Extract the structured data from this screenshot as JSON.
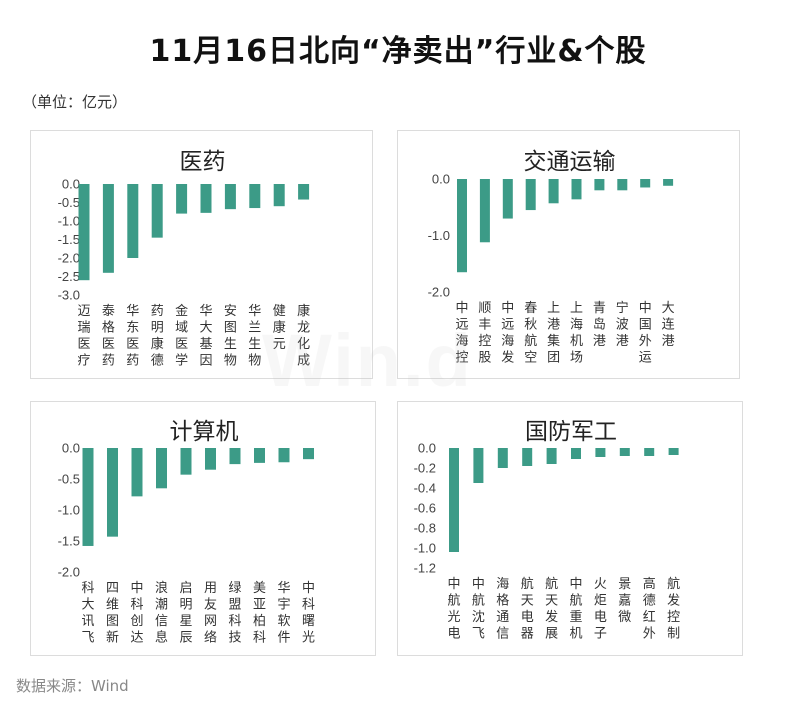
{
  "title": "11月16日北向“净卖出”行业&个股",
  "unit": "（单位：亿元）",
  "source": "数据来源：Wind",
  "watermark": "Win.d",
  "bar_color": "#3c9b87",
  "chart_data": [
    {
      "type": "bar",
      "title": "医药",
      "ylim": [
        -3.0,
        0.0
      ],
      "yticks": [
        "0.0",
        "-0.5",
        "-1.0",
        "-1.5",
        "-2.0",
        "-2.5",
        "-3.0"
      ],
      "categories": [
        "迈瑞医疗",
        "泰格医药",
        "华东医药",
        "药明康德",
        "金域医学",
        "华大基因",
        "安图生物",
        "华兰生物",
        "健康元",
        "康龙化成"
      ],
      "values": [
        -2.6,
        -2.4,
        -2.0,
        -1.45,
        -0.8,
        -0.78,
        -0.68,
        -0.65,
        -0.6,
        -0.42
      ]
    },
    {
      "type": "bar",
      "title": "交通运输",
      "ylim": [
        -2.0,
        0.0
      ],
      "yticks": [
        "0.0",
        "-1.0",
        "-2.0"
      ],
      "categories": [
        "中远海控",
        "顺丰控股",
        "中远海发",
        "春秋航空",
        "上港集团",
        "上海机场",
        "青岛港",
        "宁波港",
        "中国外运",
        "大连港"
      ],
      "values": [
        -1.65,
        -1.12,
        -0.7,
        -0.55,
        -0.43,
        -0.36,
        -0.2,
        -0.2,
        -0.15,
        -0.12
      ]
    },
    {
      "type": "bar",
      "title": "计算机",
      "ylim": [
        -2.0,
        0.0
      ],
      "yticks": [
        "0.0",
        "-0.5",
        "-1.0",
        "-1.5",
        "-2.0"
      ],
      "categories": [
        "科大讯飞",
        "四维图新",
        "中科创达",
        "浪潮信息",
        "启明星辰",
        "用友网络",
        "绿盟科技",
        "美亚柏科",
        "华宇软件",
        "中科曙光"
      ],
      "values": [
        -1.58,
        -1.43,
        -0.78,
        -0.65,
        -0.43,
        -0.35,
        -0.26,
        -0.24,
        -0.23,
        -0.18
      ]
    },
    {
      "type": "bar",
      "title": "国防军工",
      "ylim": [
        -1.2,
        0.0
      ],
      "yticks": [
        "0.0",
        "-0.2",
        "-0.4",
        "-0.6",
        "-0.8",
        "-1.0",
        "-1.2"
      ],
      "categories": [
        "中航光电",
        "中航沈飞",
        "海格通信",
        "航天电器",
        "航天发展",
        "中航重机",
        "火炬电子",
        "景嘉微",
        "高德红外",
        "航发控制"
      ],
      "values": [
        -1.04,
        -0.35,
        -0.2,
        -0.18,
        -0.16,
        -0.11,
        -0.09,
        -0.08,
        -0.08,
        -0.07
      ]
    }
  ]
}
